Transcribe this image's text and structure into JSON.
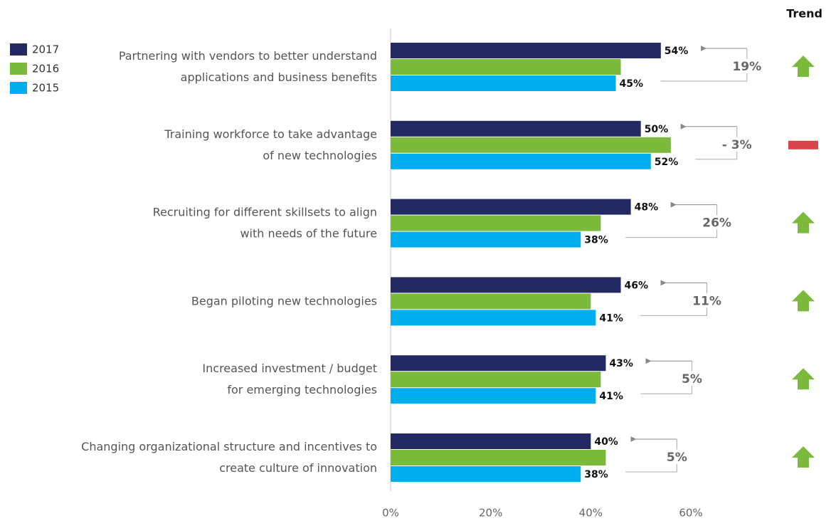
{
  "chart_data": {
    "type": "bar",
    "orientation": "horizontal",
    "trend_title": "Trend",
    "categories": [
      "Partnering with vendors to better understand\napplications and business benefits",
      "Training workforce to take advantage\nof new technologies",
      "Recruiting for different skillsets to align\nwith needs of the future",
      "Began piloting new technologies",
      "Increased investment / budget\nfor emerging technologies",
      "Changing organizational structure and incentives to\ncreate culture of innovation"
    ],
    "series": [
      {
        "name": "2017",
        "color": "#232a63",
        "values": [
          54,
          50,
          48,
          46,
          43,
          40
        ],
        "value_labels": [
          "54%",
          "50%",
          "48%",
          "46%",
          "43%",
          "40%"
        ]
      },
      {
        "name": "2016",
        "color": "#7cba3c",
        "values": [
          46,
          56,
          42,
          40,
          42,
          43
        ]
      },
      {
        "name": "2015",
        "color": "#00aeef",
        "values": [
          45,
          52,
          38,
          41,
          41,
          38
        ],
        "value_labels": [
          "45%",
          "52%",
          "38%",
          "41%",
          "41%",
          "38%"
        ]
      }
    ],
    "changes": {
      "values": [
        19,
        -3,
        26,
        11,
        5,
        5
      ],
      "value_labels": [
        "19%",
        "- 3%",
        "26%",
        "11%",
        "5%",
        "5%"
      ],
      "up_color": "#7cba3c",
      "down_color": "#d9434a"
    },
    "xlim": [
      0,
      60
    ],
    "xticks": [
      {
        "value": 0,
        "label": "0%"
      },
      {
        "value": 20,
        "label": "20%"
      },
      {
        "value": 40,
        "label": "40%"
      },
      {
        "value": 60,
        "label": "60%"
      }
    ],
    "legend": "top-left"
  }
}
